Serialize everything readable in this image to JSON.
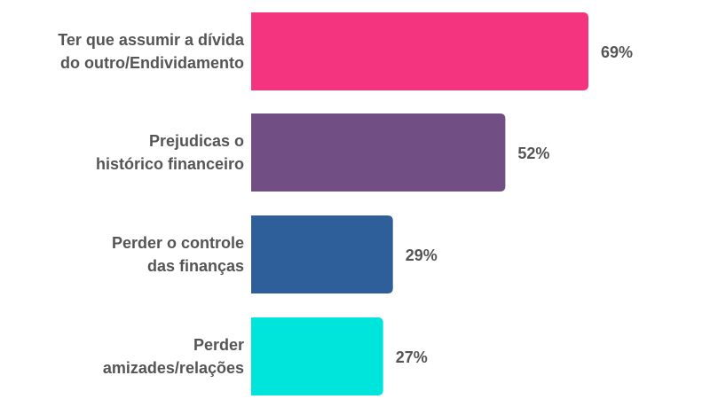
{
  "chart_data": {
    "type": "bar",
    "orientation": "horizontal",
    "categories": [
      [
        "Ter que assumir a dívida",
        "do outro/Endividamento"
      ],
      [
        "Prejudicas o",
        "histórico financeiro"
      ],
      [
        "Perder o controle",
        "das finanças"
      ],
      [
        "Perder",
        "amizades/relações"
      ]
    ],
    "values": [
      69,
      52,
      29,
      27
    ],
    "value_labels": [
      "69%",
      "52%",
      "29%",
      "27%"
    ],
    "unit": "%",
    "colors": [
      "#F5347F",
      "#714E84",
      "#2F5F9A",
      "#00E5DB"
    ],
    "grid": false,
    "legend": "none"
  }
}
